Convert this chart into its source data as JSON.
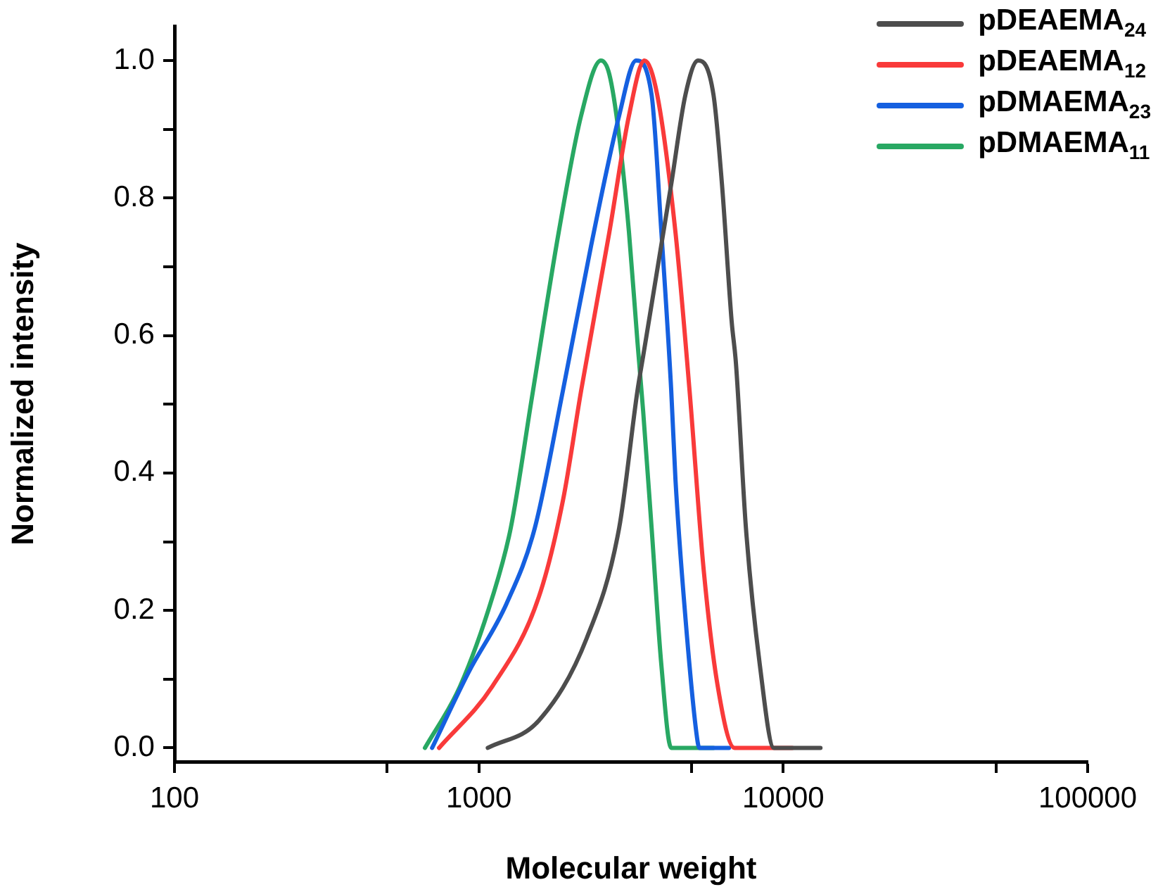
{
  "chart_data": {
    "type": "line",
    "xlabel": "Molecular weight",
    "ylabel": "Normalized intensity",
    "log": "x",
    "xlim": [
      100,
      100000
    ],
    "xticks": [
      100,
      1000,
      10000,
      100000,
      {
        "value": 500,
        "label": null
      },
      {
        "value": 5000,
        "label": null
      },
      {
        "value": 50000,
        "label": null
      }
    ],
    "ylim": [
      -0.02,
      1.05
    ],
    "yticks": [
      {
        "value": 0,
        "label": "0.0"
      },
      {
        "value": 0.2,
        "label": "0.2"
      },
      {
        "value": 0.4,
        "label": "0.4"
      },
      {
        "value": 0.6,
        "label": "0.6"
      },
      {
        "value": 0.8,
        "label": "0.8"
      },
      {
        "value": 1,
        "label": "1.0"
      },
      {
        "value": 0.1,
        "label": null
      },
      {
        "value": 0.3,
        "label": null
      },
      {
        "value": 0.5,
        "label": null
      },
      {
        "value": 0.7,
        "label": null
      },
      {
        "value": 0.9,
        "label": null
      }
    ],
    "grid": false,
    "legend": "top right",
    "marker": "none",
    "line_style": "solid",
    "series": [
      {
        "name": "pDEAEMA$_{24}$",
        "color": "#4d4d4d",
        "x": [
          1070,
          1575,
          2263,
          2890,
          3320,
          3465,
          4285,
          4770,
          5250,
          5900,
          6290,
          6770,
          6990,
          7540,
          8380,
          9320,
          13250
        ],
        "values": [
          0,
          0.04,
          0.16,
          0.32,
          0.52,
          0.57,
          0.82,
          0.95,
          1,
          0.95,
          0.82,
          0.62,
          0.56,
          0.32,
          0.12,
          0,
          0
        ]
      },
      {
        "name": "pDEAEMA$_{12}$",
        "color": "#f93a3a",
        "x": [
          740,
          1109,
          1575,
          1889,
          2168,
          2683,
          3113,
          3500,
          3855,
          4425,
          4922,
          5475,
          6090,
          6920,
          10710
        ],
        "values": [
          0,
          0.09,
          0.22,
          0.36,
          0.52,
          0.75,
          0.92,
          1,
          0.95,
          0.75,
          0.52,
          0.26,
          0.09,
          0,
          0
        ]
      },
      {
        "name": "pDMAEMA$_{23}$",
        "color": "#1560e0",
        "x": [
          702,
          925,
          1233,
          1527,
          1889,
          2336,
          2890,
          3285,
          3694,
          3978,
          4285,
          4425,
          4770,
          5190,
          5300,
          6635
        ],
        "values": [
          0,
          0.11,
          0.21,
          0.32,
          0.52,
          0.73,
          0.92,
          1,
          0.95,
          0.75,
          0.52,
          0.39,
          0.19,
          0.02,
          0,
          0
        ]
      },
      {
        "name": "pDMAEMA$_{11}$",
        "color": "#28a863",
        "x": [
          665,
          868,
          1109,
          1273,
          1494,
          1829,
          2168,
          2517,
          2683,
          2890,
          3113,
          3320,
          3465,
          3694,
          3978,
          4285,
          5900
        ],
        "values": [
          0,
          0.09,
          0.22,
          0.32,
          0.51,
          0.75,
          0.92,
          1,
          0.98,
          0.89,
          0.75,
          0.59,
          0.49,
          0.32,
          0.12,
          0,
          0
        ]
      }
    ]
  }
}
